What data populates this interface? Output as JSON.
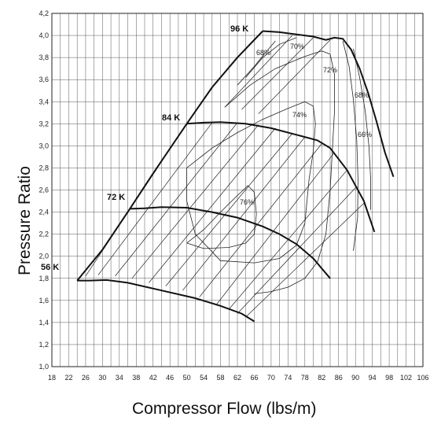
{
  "chart_data": {
    "type": "line",
    "title": "",
    "xlabel": "Compressor Flow (lbs/m)",
    "ylabel": "Pressure Ratio",
    "xlim": [
      18,
      106
    ],
    "ylim": [
      1.0,
      4.2
    ],
    "grid": true,
    "x_ticks": [
      "18",
      "22",
      "26",
      "30",
      "34",
      "38",
      "42",
      "46",
      "50",
      "54",
      "58",
      "62",
      "66",
      "70",
      "74",
      "78",
      "82",
      "86",
      "90",
      "94",
      "98",
      "102",
      "106"
    ],
    "y_ticks": [
      "1,0",
      "1,2",
      "1,4",
      "1,6",
      "1,8",
      "2,0",
      "2,2",
      "2,4",
      "2,6",
      "2,8",
      "3,0",
      "3,2",
      "3,4",
      "3,6",
      "3,8",
      "4,0",
      "4,2"
    ],
    "speed_lines": [
      {
        "label": "56 K",
        "points": [
          [
            24,
            1.78
          ],
          [
            27,
            1.78
          ],
          [
            31,
            1.785
          ],
          [
            36,
            1.76
          ],
          [
            44,
            1.69
          ],
          [
            52,
            1.62
          ],
          [
            58,
            1.55
          ],
          [
            63,
            1.48
          ],
          [
            66,
            1.41
          ]
        ]
      },
      {
        "label": "72 K",
        "points": [
          [
            36.5,
            2.43
          ],
          [
            40,
            2.435
          ],
          [
            44,
            2.445
          ],
          [
            50,
            2.44
          ],
          [
            56,
            2.4
          ],
          [
            62,
            2.35
          ],
          [
            68,
            2.27
          ],
          [
            72,
            2.2
          ],
          [
            76,
            2.11
          ],
          [
            80,
            1.98
          ],
          [
            84,
            1.8
          ]
        ]
      },
      {
        "label": "84 K",
        "points": [
          [
            50,
            3.2
          ],
          [
            54,
            3.21
          ],
          [
            58,
            3.215
          ],
          [
            64,
            3.2
          ],
          [
            70,
            3.16
          ],
          [
            76,
            3.1
          ],
          [
            81,
            3.05
          ],
          [
            84,
            2.98
          ],
          [
            88,
            2.78
          ],
          [
            92,
            2.5
          ],
          [
            94.5,
            2.22
          ]
        ]
      },
      {
        "label": "96 K",
        "points": [
          [
            68,
            4.04
          ],
          [
            72,
            4.03
          ],
          [
            76,
            4.01
          ],
          [
            80,
            3.99
          ],
          [
            83,
            3.96
          ],
          [
            85,
            3.98
          ],
          [
            87,
            3.97
          ],
          [
            89,
            3.87
          ],
          [
            91,
            3.7
          ],
          [
            93,
            3.48
          ],
          [
            95,
            3.22
          ],
          [
            97,
            2.94
          ],
          [
            99,
            2.72
          ]
        ]
      }
    ],
    "surge_line": [
      [
        24,
        1.78
      ],
      [
        30,
        2.06
      ],
      [
        36.5,
        2.43
      ],
      [
        42,
        2.75
      ],
      [
        50,
        3.2
      ],
      [
        56,
        3.53
      ],
      [
        62,
        3.8
      ],
      [
        68,
        4.04
      ]
    ],
    "efficiency_islands": [
      {
        "label": "76%",
        "points": [
          [
            50,
            2.12
          ],
          [
            54,
            2.24
          ],
          [
            58,
            2.4
          ],
          [
            62,
            2.55
          ],
          [
            64.5,
            2.64
          ],
          [
            66,
            2.58
          ],
          [
            66.5,
            2.38
          ],
          [
            66,
            2.2
          ],
          [
            64,
            2.12
          ],
          [
            60,
            2.08
          ],
          [
            54,
            2.07
          ],
          [
            50,
            2.12
          ]
        ]
      },
      {
        "label": "74%",
        "points": [
          [
            50,
            2.8
          ],
          [
            56,
            2.98
          ],
          [
            62,
            3.12
          ],
          [
            68,
            3.24
          ],
          [
            74,
            3.34
          ],
          [
            78,
            3.4
          ],
          [
            80,
            3.36
          ],
          [
            80.5,
            3.2
          ],
          [
            80,
            2.95
          ],
          [
            79,
            2.7
          ],
          [
            78,
            2.3
          ],
          [
            76,
            2.1
          ],
          [
            72,
            1.98
          ],
          [
            66,
            1.94
          ],
          [
            58,
            1.96
          ],
          [
            52,
            2.2
          ],
          [
            50,
            2.5
          ],
          [
            50,
            2.8
          ]
        ]
      },
      {
        "label": "72%",
        "points": [
          [
            59,
            3.35
          ],
          [
            65,
            3.55
          ],
          [
            71,
            3.7
          ],
          [
            78,
            3.81
          ],
          [
            82,
            3.86
          ],
          [
            84,
            3.83
          ],
          [
            85,
            3.65
          ],
          [
            85,
            3.3
          ],
          [
            84.5,
            2.95
          ],
          [
            84,
            2.6
          ],
          [
            83,
            2.2
          ],
          [
            81,
            1.95
          ],
          [
            78,
            1.8
          ],
          [
            74,
            1.72
          ],
          [
            70,
            1.68
          ],
          [
            66,
            1.66
          ]
        ]
      },
      {
        "label": "70%",
        "points": [
          [
            64,
            3.62
          ],
          [
            68,
            3.8
          ],
          [
            72,
            3.92
          ],
          [
            76,
            3.98
          ]
        ]
      },
      {
        "label": "68%",
        "points": [
          [
            62,
            3.55
          ],
          [
            66,
            3.72
          ],
          [
            69,
            3.86
          ],
          [
            71,
            3.95
          ]
        ]
      },
      {
        "label": "68%",
        "points": [
          [
            87,
            3.95
          ],
          [
            88.5,
            3.72
          ],
          [
            89.5,
            3.42
          ],
          [
            90.3,
            3.05
          ],
          [
            90.6,
            2.7
          ],
          [
            90.5,
            2.35
          ],
          [
            89.5,
            2.05
          ]
        ]
      },
      {
        "label": "66%",
        "points": [
          [
            89.5,
            3.88
          ],
          [
            91,
            3.62
          ],
          [
            92.3,
            3.32
          ],
          [
            93.2,
            3.0
          ],
          [
            93.6,
            2.7
          ],
          [
            93.6,
            2.42
          ]
        ]
      }
    ],
    "annotations": [
      "56 K",
      "72 K",
      "84 K",
      "96 K",
      "76%",
      "74%",
      "72%",
      "70%",
      "68%",
      "68%",
      "66%"
    ]
  }
}
